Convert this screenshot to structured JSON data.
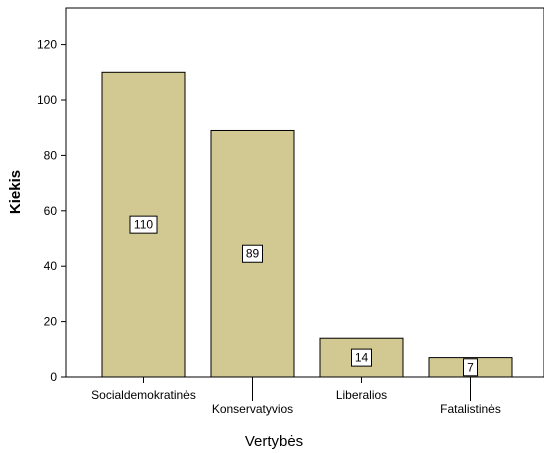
{
  "chart_data": {
    "type": "bar",
    "title": "",
    "xlabel": "Vertybės",
    "ylabel": "Kiekis",
    "categories": [
      "Socialdemokratinės",
      "Konservatyvios",
      "Liberalios",
      "Fatalistinės"
    ],
    "values": [
      110,
      89,
      14,
      7
    ],
    "data_labels": [
      "110",
      "89",
      "14",
      "7"
    ],
    "yticks": [
      0,
      20,
      40,
      60,
      80,
      100,
      120
    ],
    "ylim": [
      0,
      133
    ],
    "grid": false,
    "legend": "none",
    "colors": {
      "bar_fill": "#d2c992",
      "bar_stroke": "#000000",
      "label_box": "#ffffff"
    }
  }
}
